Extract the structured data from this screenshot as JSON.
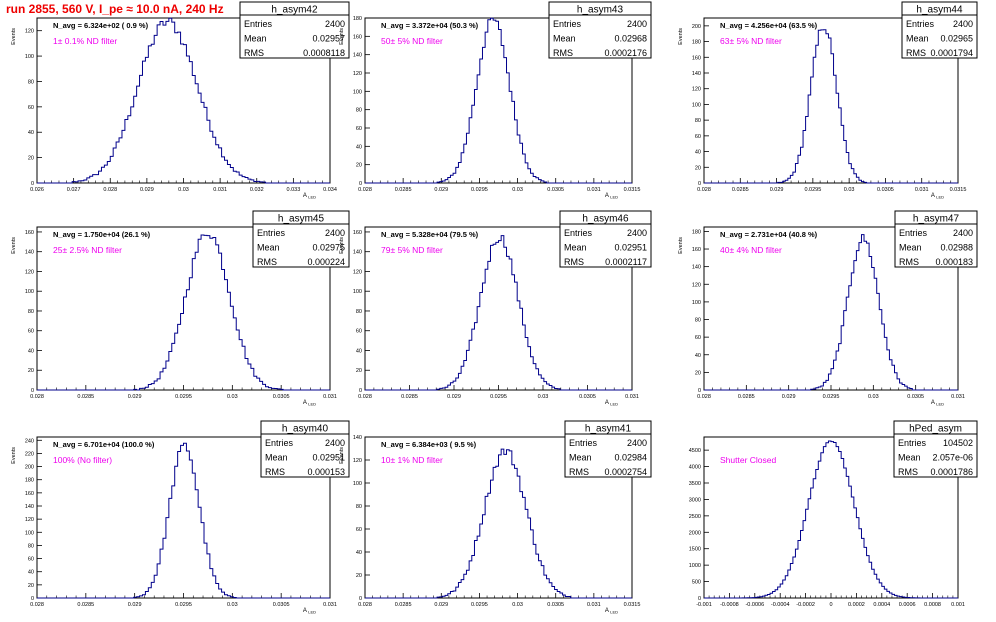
{
  "page": {
    "title": "run 2855,   560 V, I_pe ≈ 10.0 nA, 240 Hz"
  },
  "colors": {
    "histogram": "#00008b",
    "annotation": "#ee00ee",
    "title": "#ee0000",
    "frame": "#000000"
  },
  "chart_data": [
    {
      "type": "bar",
      "name": "h_asym42",
      "ylabel": "Events",
      "xlabel": "A_LED",
      "xlim": [
        0.026,
        0.034
      ],
      "ylim": [
        0,
        130
      ],
      "xticks": [
        0.026,
        0.027,
        0.028,
        0.029,
        0.03,
        0.031,
        0.032,
        0.033,
        0.034
      ],
      "xtick_labels": [
        "0.026",
        "0.027",
        "0.028",
        "0.029",
        "0.03",
        "0.031",
        "0.032",
        "0.033",
        "0.034"
      ],
      "yticks": [
        0,
        20,
        40,
        60,
        80,
        100,
        120
      ],
      "stats": {
        "name": "h_asym42",
        "entries": "2400",
        "mean": "0.02957",
        "rms": "0.0008118"
      },
      "navg": "N_avg = 6.324e+02 ( 0.9 %)",
      "filter": "1± 0.1% ND filter",
      "mean": 0.02957,
      "rms": 0.0008118,
      "peak": 127,
      "bins": 100
    },
    {
      "type": "bar",
      "name": "h_asym43",
      "ylabel": "Events",
      "xlabel": "A_LED",
      "xlim": [
        0.028,
        0.0315
      ],
      "ylim": [
        0,
        180
      ],
      "xticks": [
        0.028,
        0.0285,
        0.029,
        0.0295,
        0.03,
        0.0305,
        0.031,
        0.0315
      ],
      "xtick_labels": [
        "0.028",
        "0.0285",
        "0.029",
        "0.0295",
        "0.03",
        "0.0305",
        "0.031",
        "0.0315"
      ],
      "yticks": [
        0,
        20,
        40,
        60,
        80,
        100,
        120,
        140,
        160,
        180
      ],
      "stats": {
        "name": "h_asym43",
        "entries": "2400",
        "mean": "0.02968",
        "rms": "0.0002176"
      },
      "navg": "N_avg = 3.372e+04 (50.3 %)",
      "filter": "50± 5% ND filter",
      "mean": 0.02968,
      "rms": 0.0002176,
      "peak": 178,
      "bins": 100
    },
    {
      "type": "bar",
      "name": "h_asym44",
      "ylabel": "Events",
      "xlabel": "A_LED",
      "xlim": [
        0.028,
        0.0315
      ],
      "ylim": [
        0,
        210
      ],
      "xticks": [
        0.028,
        0.0285,
        0.029,
        0.0295,
        0.03,
        0.0305,
        0.031,
        0.0315
      ],
      "xtick_labels": [
        "0.028",
        "0.0285",
        "0.029",
        "0.0295",
        "0.03",
        "0.0305",
        "0.031",
        "0.0315"
      ],
      "yticks": [
        0,
        20,
        40,
        60,
        80,
        100,
        120,
        140,
        160,
        180,
        200
      ],
      "stats": {
        "name": "h_asym44",
        "entries": "2400",
        "mean": "0.02965",
        "rms": "0.0001794"
      },
      "navg": "N_avg = 4.256e+04 (63.5 %)",
      "filter": "63± 5% ND filter",
      "mean": 0.02965,
      "rms": 0.0001794,
      "peak": 200,
      "bins": 100
    },
    {
      "type": "bar",
      "name": "h_asym45",
      "ylabel": "Events",
      "xlabel": "A_LED",
      "xlim": [
        0.028,
        0.031
      ],
      "ylim": [
        0,
        165
      ],
      "xticks": [
        0.028,
        0.0285,
        0.029,
        0.0295,
        0.03,
        0.0305,
        0.031
      ],
      "xtick_labels": [
        "0.028",
        "0.0285",
        "0.029",
        "0.0295",
        "0.03",
        "0.0305",
        "0.031"
      ],
      "yticks": [
        0,
        20,
        40,
        60,
        80,
        100,
        120,
        140,
        160
      ],
      "stats": {
        "name": "h_asym45",
        "entries": "2400",
        "mean": "0.02975",
        "rms": "0.000224"
      },
      "navg": "N_avg = 1.750e+04 (26.1 %)",
      "filter": "25± 2.5% ND filter",
      "mean": 0.02975,
      "rms": 0.000224,
      "peak": 160,
      "bins": 100
    },
    {
      "type": "bar",
      "name": "h_asym46",
      "ylabel": "Events",
      "xlabel": "A_LED",
      "xlim": [
        0.028,
        0.031
      ],
      "ylim": [
        0,
        165
      ],
      "xticks": [
        0.028,
        0.0285,
        0.029,
        0.0295,
        0.03,
        0.0305,
        0.031
      ],
      "xtick_labels": [
        "0.028",
        "0.0285",
        "0.029",
        "0.0295",
        "0.03",
        "0.0305",
        "0.031"
      ],
      "yticks": [
        0,
        20,
        40,
        60,
        80,
        100,
        120,
        140,
        160
      ],
      "stats": {
        "name": "h_asym46",
        "entries": "2400",
        "mean": "0.02951",
        "rms": "0.0002117"
      },
      "navg": "N_avg = 5.328e+04 (79.5 %)",
      "filter": "79± 5% ND filter",
      "mean": 0.02951,
      "rms": 0.0002117,
      "peak": 155,
      "bins": 100
    },
    {
      "type": "bar",
      "name": "h_asym47",
      "ylabel": "Events",
      "xlabel": "A_LED",
      "xlim": [
        0.028,
        0.031
      ],
      "ylim": [
        0,
        185
      ],
      "xticks": [
        0.028,
        0.0285,
        0.029,
        0.0295,
        0.03,
        0.0305,
        0.031
      ],
      "xtick_labels": [
        "0.028",
        "0.0285",
        "0.029",
        "0.0295",
        "0.03",
        "0.0305",
        "0.031"
      ],
      "yticks": [
        0,
        20,
        40,
        60,
        80,
        100,
        120,
        140,
        160,
        180
      ],
      "stats": {
        "name": "h_asym47",
        "entries": "2400",
        "mean": "0.02988",
        "rms": "0.000183"
      },
      "navg": "N_avg = 2.731e+04 (40.8 %)",
      "filter": "40± 4% ND filter",
      "mean": 0.02988,
      "rms": 0.000183,
      "peak": 172,
      "bins": 100
    },
    {
      "type": "bar",
      "name": "h_asym40",
      "ylabel": "Events",
      "xlabel": "A_LED",
      "xlim": [
        0.028,
        0.031
      ],
      "ylim": [
        0,
        245
      ],
      "xticks": [
        0.028,
        0.0285,
        0.029,
        0.0295,
        0.03,
        0.0305,
        0.031
      ],
      "xtick_labels": [
        "0.028",
        "0.0285",
        "0.029",
        "0.0295",
        "0.03",
        "0.0305",
        "0.031"
      ],
      "yticks": [
        0,
        20,
        40,
        60,
        80,
        100,
        120,
        140,
        160,
        180,
        200,
        220,
        240
      ],
      "stats": {
        "name": "h_asym40",
        "entries": "2400",
        "mean": "0.02951",
        "rms": "0.000153"
      },
      "navg": "N_avg = 6.701e+04 (100.0 %)",
      "filter": "100% (No filter)",
      "mean": 0.02951,
      "rms": 0.000153,
      "peak": 232,
      "bins": 100
    },
    {
      "type": "bar",
      "name": "h_asym41",
      "ylabel": "Events",
      "xlabel": "A_LED",
      "xlim": [
        0.028,
        0.0315
      ],
      "ylim": [
        0,
        140
      ],
      "xticks": [
        0.028,
        0.0285,
        0.029,
        0.0295,
        0.03,
        0.0305,
        0.031,
        0.0315
      ],
      "xtick_labels": [
        "0.028",
        "0.0285",
        "0.029",
        "0.0295",
        "0.03",
        "0.0305",
        "0.031",
        "0.0315"
      ],
      "yticks": [
        0,
        20,
        40,
        60,
        80,
        100,
        120,
        140
      ],
      "stats": {
        "name": "h_asym41",
        "entries": "2400",
        "mean": "0.02984",
        "rms": "0.0002754"
      },
      "navg": "N_avg = 6.384e+03 ( 9.5 %)",
      "filter": "10± 1% ND filter",
      "mean": 0.02984,
      "rms": 0.0002754,
      "peak": 128,
      "bins": 100
    },
    {
      "type": "bar",
      "name": "hPed_asym",
      "ylabel": "",
      "xlabel": "",
      "xlim": [
        -0.001,
        0.001
      ],
      "ylim": [
        0,
        4900
      ],
      "xticks": [
        -0.001,
        -0.0008,
        -0.0006,
        -0.0004,
        -0.0002,
        0,
        0.0002,
        0.0004,
        0.0006,
        0.0008,
        0.001
      ],
      "xtick_labels": [
        "-0.001",
        "-0.0008",
        "-0.0006",
        "-0.0004",
        "-0.0002",
        "0",
        "0.0002",
        "0.0004",
        "0.0006",
        "0.0008",
        "0.001"
      ],
      "yticks": [
        0,
        500,
        1000,
        1500,
        2000,
        2500,
        3000,
        3500,
        4000,
        4500
      ],
      "stats": {
        "name": "hPed_asym",
        "entries": "104502",
        "mean": "2.057e-06",
        "rms": "0.0001786"
      },
      "navg": "",
      "filter": "Shutter Closed",
      "mean": 2.057e-06,
      "rms": 0.0001786,
      "peak": 4780,
      "bins": 100
    }
  ]
}
